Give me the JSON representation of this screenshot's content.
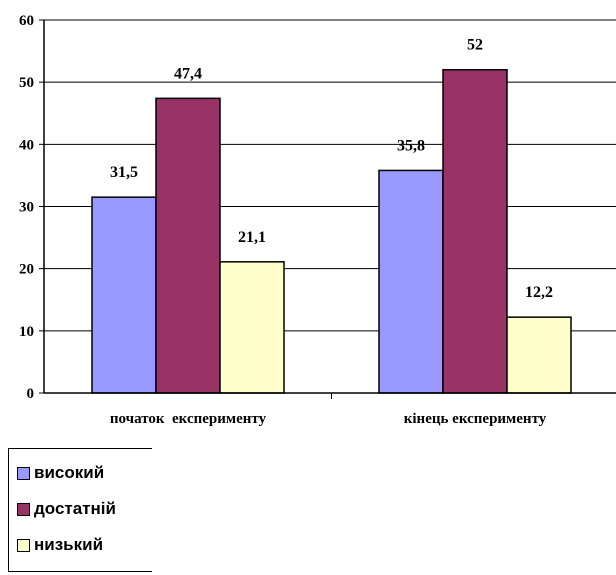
{
  "chart_data": {
    "type": "bar",
    "categories": [
      "початок  експерименту",
      "кінець експерименту"
    ],
    "series": [
      {
        "name": "високий",
        "values": [
          31.5,
          35.8
        ],
        "labels": [
          "31,5",
          "35,8"
        ],
        "color": "#9999ff"
      },
      {
        "name": "достатній",
        "values": [
          47.4,
          52
        ],
        "labels": [
          "47,4",
          "52"
        ],
        "color": "#993366"
      },
      {
        "name": "низький",
        "values": [
          21.1,
          12.2
        ],
        "labels": [
          "21,1",
          "12,2"
        ],
        "color": "#ffffcc"
      }
    ],
    "yticks": [
      "0",
      "10",
      "20",
      "30",
      "40",
      "50",
      "60"
    ],
    "ylim": [
      0,
      60
    ],
    "grid": true,
    "legend_position": "bottom-left"
  }
}
